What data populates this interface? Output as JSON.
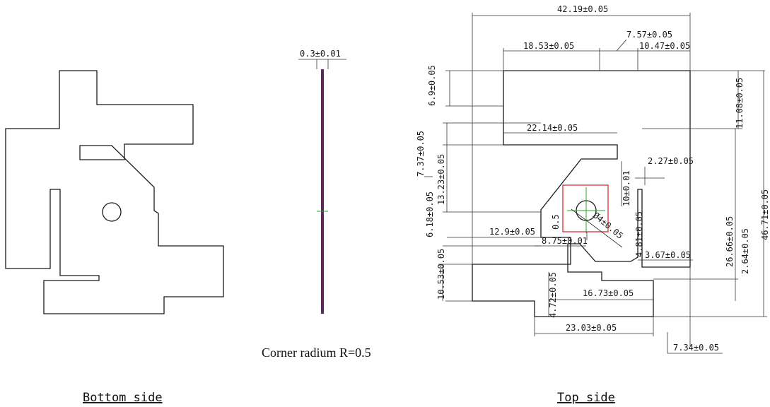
{
  "colors": {
    "outline": "#1a1a1a",
    "profile": "#5a2a5a",
    "center_mark": "#22aa22",
    "highlight": "#e03030"
  },
  "thickness_label": "0.3±0.01",
  "note": "Corner radium R=0.5",
  "captions": {
    "bottom": "Bottom side",
    "top": "Top side"
  },
  "dimensions": {
    "overall_width": "42.19±0.05",
    "d_7_57": "7.57±0.05",
    "d_18_53": "18.53±0.05",
    "d_10_47": "10.47±0.05",
    "d_6_9": "6.9±0.05",
    "d_11_08": "11.08±0.05",
    "d_22_14": "22.14±0.05",
    "d_7_37": "7.37±0.05",
    "d_13_23": "13.23±0.05",
    "d_2_27": "2.27±0.05",
    "d_10": "10±0.01",
    "d_26_66": "26.66±0.05",
    "d_46_71": "46.71±0.05",
    "d_0_5": "0.5",
    "d_6_18": "6.18±0.05",
    "d_12_9": "12.9±0.05",
    "d_8_75": "8.75±0.01",
    "d_dia4": "Ø4±0.05",
    "d_4_81": "4.81±0.05",
    "d_3_67": "3.67±0.05",
    "d_2_64": "2.64±0.05",
    "d_10_53": "10.53±0.05",
    "d_4_72": "4.72±0.05",
    "d_16_73": "16.73±0.05",
    "d_23_03": "23.03±0.05",
    "d_7_34": "7.34±0.05"
  }
}
